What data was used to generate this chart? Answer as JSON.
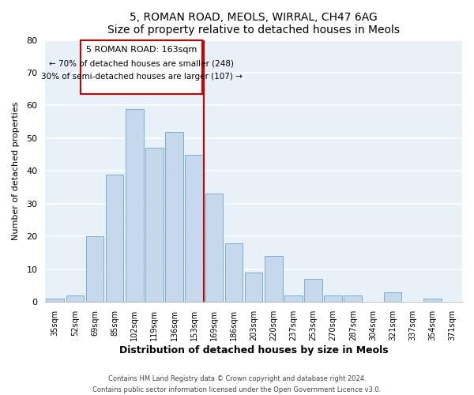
{
  "title1": "5, ROMAN ROAD, MEOLS, WIRRAL, CH47 6AG",
  "title2": "Size of property relative to detached houses in Meols",
  "xlabel": "Distribution of detached houses by size in Meols",
  "ylabel": "Number of detached properties",
  "bar_labels": [
    "35sqm",
    "52sqm",
    "69sqm",
    "85sqm",
    "102sqm",
    "119sqm",
    "136sqm",
    "153sqm",
    "169sqm",
    "186sqm",
    "203sqm",
    "220sqm",
    "237sqm",
    "253sqm",
    "270sqm",
    "287sqm",
    "304sqm",
    "321sqm",
    "337sqm",
    "354sqm",
    "371sqm"
  ],
  "bar_values": [
    1,
    2,
    20,
    39,
    59,
    47,
    52,
    45,
    33,
    18,
    9,
    14,
    2,
    7,
    2,
    2,
    0,
    3,
    0,
    1,
    0
  ],
  "bar_color": "#c5d8ec",
  "bar_edge_color": "#7aaed4",
  "ylim": [
    0,
    80
  ],
  "yticks": [
    0,
    10,
    20,
    30,
    40,
    50,
    60,
    70,
    80
  ],
  "vline_color": "#cc0000",
  "annotation_title": "5 ROMAN ROAD: 163sqm",
  "annotation_line1": "← 70% of detached houses are smaller (248)",
  "annotation_line2": "30% of semi-detached houses are larger (107) →",
  "annotation_box_color": "#ffffff",
  "annotation_box_edge": "#cc0000",
  "footer1": "Contains HM Land Registry data © Crown copyright and database right 2024.",
  "footer2": "Contains public sector information licensed under the Open Government Licence v3.0.",
  "bg_color": "#ffffff",
  "plot_bg_color": "#e8f0f8"
}
